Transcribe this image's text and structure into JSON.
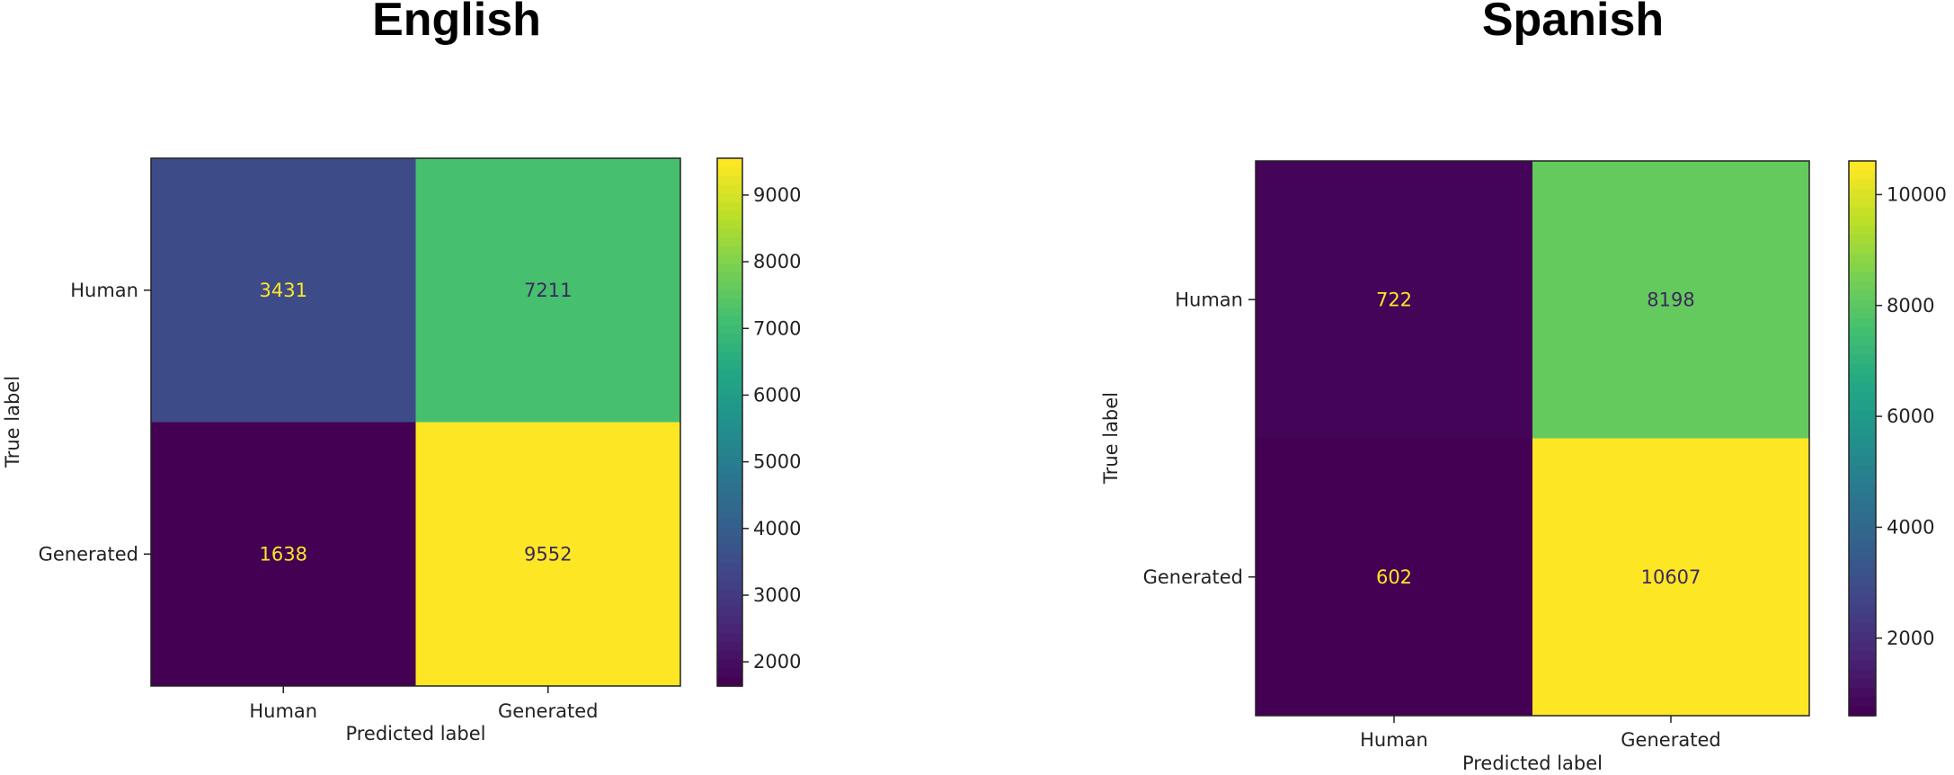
{
  "chart_data": [
    {
      "type": "heatmap",
      "title": "English",
      "xlabel": "Predicted label",
      "ylabel": "True label",
      "x_categories": [
        "Human",
        "Generated"
      ],
      "y_categories": [
        "Human",
        "Generated"
      ],
      "values": [
        [
          3431,
          7211
        ],
        [
          1638,
          9552
        ]
      ],
      "colormap": "viridis",
      "colorbar_range": [
        1638,
        9552
      ],
      "colorbar_ticks": [
        2000,
        3000,
        4000,
        5000,
        6000,
        7000,
        8000,
        9000
      ]
    },
    {
      "type": "heatmap",
      "title": "Spanish",
      "xlabel": "Predicted label",
      "ylabel": "True label",
      "x_categories": [
        "Human",
        "Generated"
      ],
      "y_categories": [
        "Human",
        "Generated"
      ],
      "values": [
        [
          722,
          8198
        ],
        [
          602,
          10607
        ]
      ],
      "colormap": "viridis",
      "colorbar_range": [
        602,
        10607
      ],
      "colorbar_ticks": [
        2000,
        4000,
        6000,
        8000,
        10000
      ]
    }
  ]
}
